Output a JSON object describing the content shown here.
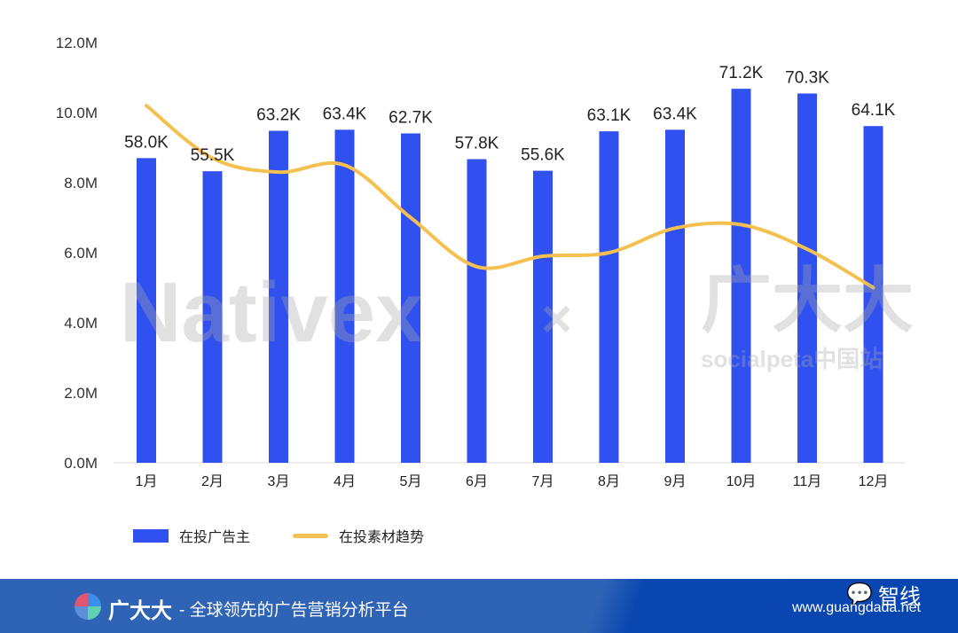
{
  "chart_data": {
    "type": "bar+line",
    "categories": [
      "1月",
      "2月",
      "3月",
      "4月",
      "5月",
      "6月",
      "7月",
      "8月",
      "9月",
      "10月",
      "11月",
      "12月"
    ],
    "series": [
      {
        "name": "在投广告主",
        "type": "bar",
        "values": [
          58.0,
          55.5,
          63.2,
          63.4,
          62.7,
          57.8,
          55.6,
          63.1,
          63.4,
          71.2,
          70.3,
          64.1
        ],
        "unit": "K",
        "labels": [
          "58.0K",
          "55.5K",
          "63.2K",
          "63.4K",
          "62.7K",
          "57.8K",
          "55.6K",
          "63.1K",
          "63.4K",
          "71.2K",
          "70.3K",
          "64.1K"
        ],
        "color": "#3050ef"
      },
      {
        "name": "在投素材趋势",
        "type": "line",
        "smooth": true,
        "values": [
          10.2,
          8.7,
          8.3,
          8.5,
          7.0,
          5.6,
          5.9,
          6.0,
          6.7,
          6.8,
          6.1,
          5.0
        ],
        "unit": "M",
        "color": "#f4c150"
      }
    ],
    "y_ticks": [
      "0.0M",
      "2.0M",
      "4.0M",
      "6.0M",
      "8.0M",
      "10.0M",
      "12.0M"
    ],
    "ylim": [
      0,
      12
    ],
    "bar_axis_hidden_range_k": [
      0,
      80
    ],
    "grid": false,
    "legend_placement": "bottom-left"
  },
  "watermark": {
    "left": "Nativex",
    "sep": "×",
    "right": "广大大",
    "sub": "socialpeta中国站"
  },
  "banner": {
    "brand": "广大大",
    "tagline": "- 全球领先的广告营销分析平台",
    "site": "www.guangdada.net",
    "wechat": "智线"
  }
}
